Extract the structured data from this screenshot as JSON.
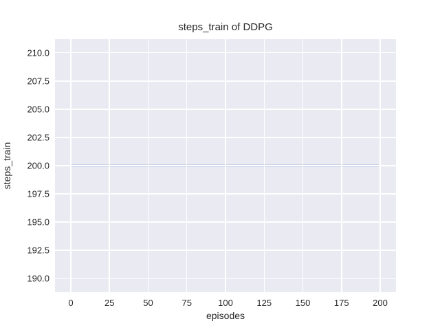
{
  "chart_data": {
    "type": "line",
    "title": "steps_train of DDPG",
    "xlabel": "episodes",
    "ylabel": "steps_train",
    "x_ticks": [
      0,
      25,
      50,
      75,
      100,
      125,
      150,
      175,
      200
    ],
    "x_tick_labels": [
      "0",
      "25",
      "50",
      "75",
      "100",
      "125",
      "150",
      "175",
      "200"
    ],
    "y_ticks": [
      210.0,
      207.5,
      205.0,
      202.5,
      200.0,
      197.5,
      195.0,
      192.5,
      190.0
    ],
    "y_tick_labels": [
      "210.0",
      "207.5",
      "205.0",
      "202.5",
      "200.0",
      "197.5",
      "195.0",
      "192.5",
      "190.0"
    ],
    "xlim": [
      -10.2,
      210.2
    ],
    "ylim": [
      188.8,
      211.2
    ],
    "grid": true,
    "legend": "none",
    "series": [
      {
        "name": "steps_train",
        "x": [
          0,
          199
        ],
        "y": [
          200,
          200
        ],
        "color": "#4c72b0",
        "note": "constant value 200 for episodes 0 through 199"
      }
    ],
    "colors": {
      "figure_background": "#ffffff",
      "axes_background": "#eaeaf2",
      "gridline": "#ffffff",
      "text": "#262626",
      "line": "#4c72b0"
    }
  }
}
